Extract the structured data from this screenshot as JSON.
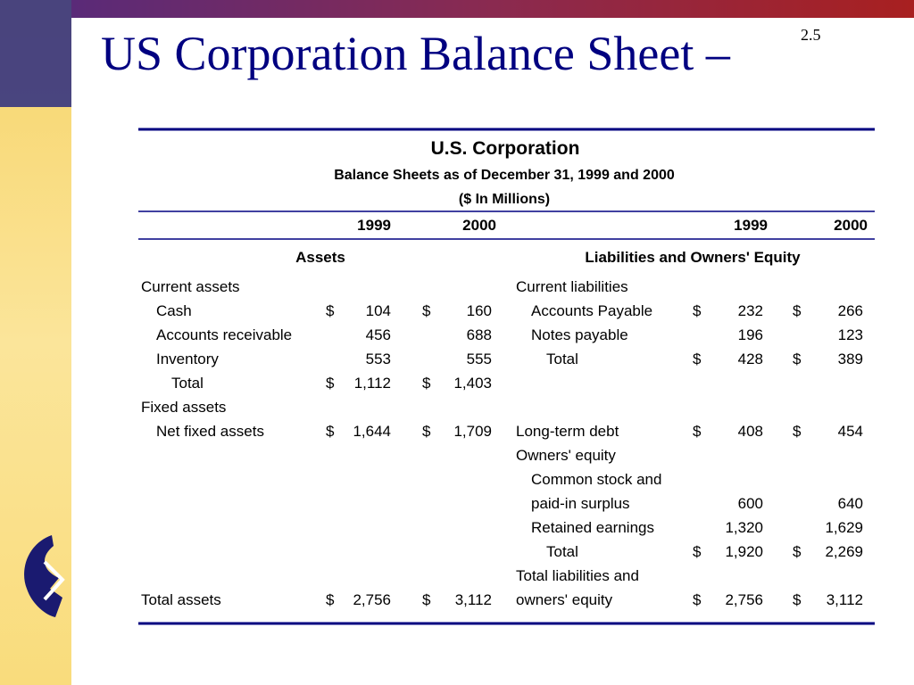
{
  "header": {
    "title": "US Corporation Balance Sheet –",
    "slide_number": "2.5"
  },
  "table": {
    "title": "U.S. Corporation",
    "subtitle": "Balance Sheets as of December 31, 1999 and 2000",
    "units": "($ In Millions)",
    "years": [
      "1999",
      "2000",
      "1999",
      "2000"
    ],
    "sections": [
      "Assets",
      "Liabilities and Owners' Equity"
    ],
    "rows": [
      {
        "left": [
          "Current assets"
        ],
        "right": [
          "Current liabilities"
        ]
      },
      {
        "left": [
          "Cash",
          "$",
          "104",
          "$",
          "160"
        ],
        "right": [
          "Accounts Payable",
          "$",
          "232",
          "$",
          "266"
        ]
      },
      {
        "left": [
          "Accounts receivable",
          null,
          "456",
          null,
          "688"
        ],
        "right": [
          "Notes payable",
          null,
          "196",
          null,
          "123"
        ]
      },
      {
        "left": [
          "Inventory",
          null,
          "553",
          null,
          "555"
        ],
        "right": [
          "Total",
          "$",
          "428",
          "$",
          "389"
        ]
      },
      {
        "left": [
          "Total",
          "$",
          "1,112",
          "$",
          "1,403"
        ]
      },
      {
        "left": [
          "Fixed assets"
        ]
      },
      {
        "left": [
          "Net fixed assets",
          "$",
          "1,644",
          "$",
          "1,709"
        ],
        "right": [
          "Long-term debt",
          "$",
          "408",
          "$",
          "454"
        ]
      },
      {
        "right": [
          "Owners' equity"
        ]
      },
      {
        "right": [
          "Common stock and"
        ]
      },
      {
        "right": [
          "paid-in surplus",
          null,
          "600",
          null,
          "640"
        ]
      },
      {
        "right": [
          "Retained earnings",
          null,
          "1,320",
          null,
          "1,629"
        ]
      },
      {
        "right": [
          "Total",
          "$",
          "1,920",
          "$",
          "2,269"
        ]
      },
      {
        "right": [
          "Total liabilities and"
        ]
      },
      {
        "left": [
          "Total assets",
          "$",
          "2,756",
          "$",
          "3,112"
        ],
        "right": [
          "owners' equity",
          "$",
          "2,756",
          "$",
          "3,112"
        ]
      }
    ]
  }
}
